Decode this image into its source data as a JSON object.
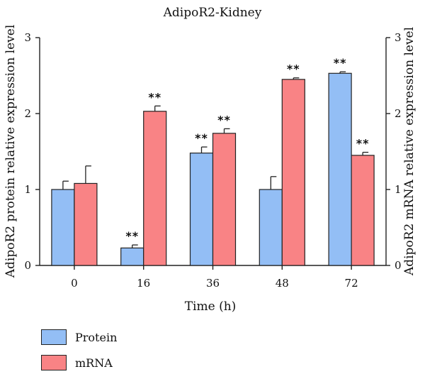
{
  "chart_data": {
    "type": "bar",
    "title": "AdipoR2-Kidney",
    "xlabel": "Time (h)",
    "ylabel": "AdipoR2 protein relative expression level",
    "ylabel_right": "AdipoR2 mRNA relative expression level",
    "categories": [
      "0",
      "16",
      "36",
      "48",
      "72"
    ],
    "ylim": [
      0,
      3
    ],
    "yticks": [
      "0",
      "1",
      "2",
      "3"
    ],
    "grid": false,
    "legend_position": "bottom-left",
    "series": [
      {
        "name": "Protein",
        "color": "#93bef5",
        "values": [
          1.0,
          0.23,
          1.48,
          1.0,
          2.53
        ],
        "errors": [
          0.11,
          0.04,
          0.08,
          0.17,
          0.02
        ],
        "significance": [
          "",
          "**",
          "**",
          "",
          "**"
        ]
      },
      {
        "name": "mRNA",
        "color": "#f98385",
        "values": [
          1.08,
          2.03,
          1.74,
          2.45,
          1.45
        ],
        "errors": [
          0.23,
          0.07,
          0.06,
          0.02,
          0.04
        ],
        "significance": [
          "",
          "**",
          "**",
          "**",
          "**"
        ]
      }
    ]
  }
}
